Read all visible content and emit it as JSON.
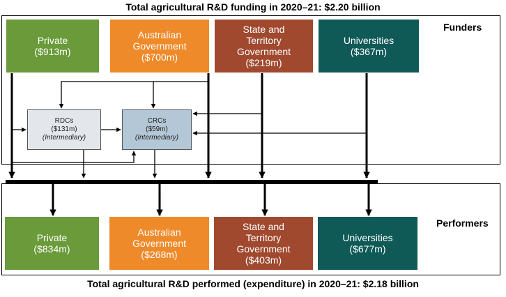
{
  "titles": {
    "top": "Total agricultural R&D funding in 2020–21: $2.20 billion",
    "bottom": "Total agricultural R&D performed (expenditure) in 2020–21: $2.18 billion"
  },
  "panels": {
    "funders_label": "Funders",
    "performers_label": "Performers"
  },
  "funders": [
    {
      "line1": "Private",
      "line2": "",
      "line3": "",
      "amount": "($913m)",
      "color": "#6a9a3a"
    },
    {
      "line1": "Australian",
      "line2": "Government",
      "line3": "",
      "amount": "($700m)",
      "color": "#ef8a2a"
    },
    {
      "line1": "State and",
      "line2": "Territory",
      "line3": "Government",
      "amount": "($219m)",
      "color": "#a0492f"
    },
    {
      "line1": "Universities",
      "line2": "",
      "line3": "",
      "amount": "($367m)",
      "color": "#0f5a57"
    }
  ],
  "intermediaries": [
    {
      "name": "RDCs",
      "amount": "($131m)",
      "role": "(Intermediary)"
    },
    {
      "name": "CRCs",
      "amount": "($59m)",
      "role": "(Intermediary)"
    }
  ],
  "performers": [
    {
      "line1": "Private",
      "line2": "",
      "line3": "",
      "amount": "($834m)",
      "color": "#6a9a3a"
    },
    {
      "line1": "Australian",
      "line2": "Government",
      "line3": "",
      "amount": "($268m)",
      "color": "#ef8a2a"
    },
    {
      "line1": "State and",
      "line2": "Territory",
      "line3": "Government",
      "amount": "($403m)",
      "color": "#a0492f"
    },
    {
      "line1": "Universities",
      "line2": "",
      "line3": "",
      "amount": "($677m)",
      "color": "#0f5a57"
    }
  ]
}
